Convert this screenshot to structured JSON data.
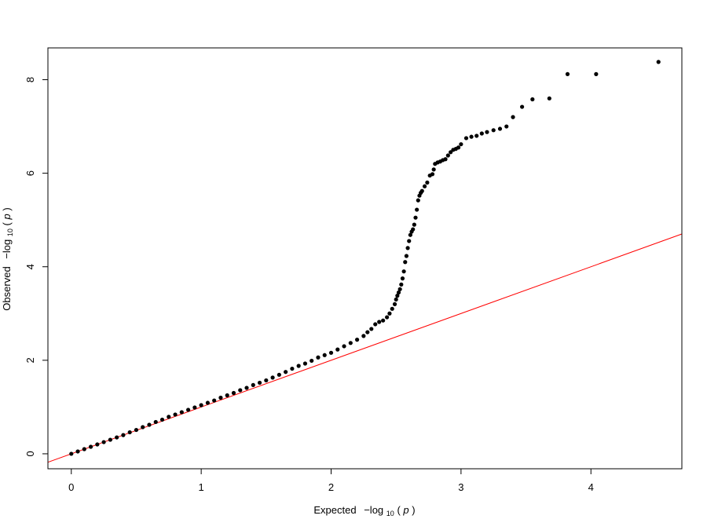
{
  "chart_data": {
    "type": "scatter",
    "title": "",
    "xlabel": {
      "prefix": "Expected",
      "func": "−log",
      "sub": "10",
      "open": "(",
      "var": "p",
      "close": ")"
    },
    "ylabel": {
      "prefix": "Observed",
      "func": "−log",
      "sub": "10",
      "open": "(",
      "var": "p",
      "close": ")"
    },
    "xlim": [
      -0.18,
      4.7
    ],
    "ylim": [
      -0.32,
      8.68
    ],
    "xticks": [
      "0",
      "1",
      "2",
      "3",
      "4"
    ],
    "yticks": [
      "0",
      "2",
      "4",
      "6",
      "8"
    ],
    "grid": false,
    "point_color": "#000000",
    "reference_line": {
      "intercept": 0,
      "slope": 1,
      "color": "#ff0000"
    },
    "series": [
      {
        "x": [
          0.0,
          0.05,
          0.1,
          0.15,
          0.2,
          0.25,
          0.3,
          0.35,
          0.4,
          0.45,
          0.5,
          0.55,
          0.6,
          0.65,
          0.7,
          0.75,
          0.8,
          0.85,
          0.9,
          0.95,
          1.0,
          1.05,
          1.1,
          1.15,
          1.2,
          1.25,
          1.3,
          1.35,
          1.4,
          1.45,
          1.5,
          1.55,
          1.6,
          1.65,
          1.7,
          1.75,
          1.8,
          1.85,
          1.9,
          1.95,
          2.0,
          2.05,
          2.1,
          2.15,
          2.2,
          2.25,
          2.28,
          2.31,
          2.34,
          2.37,
          2.4,
          2.43,
          2.45,
          2.47,
          2.49,
          2.5,
          2.51,
          2.52,
          2.53,
          2.54,
          2.55,
          2.56,
          2.57,
          2.58,
          2.59,
          2.6,
          2.61,
          2.62,
          2.63,
          2.64,
          2.65,
          2.66,
          2.67,
          2.68,
          2.69,
          2.7,
          2.72,
          2.74,
          2.76,
          2.78,
          2.79,
          2.8,
          2.82,
          2.84,
          2.86,
          2.88,
          2.9,
          2.92,
          2.94,
          2.96,
          2.98,
          3.0,
          3.04,
          3.08,
          3.12,
          3.16,
          3.2,
          3.25,
          3.3,
          3.35,
          3.4,
          3.47,
          3.55,
          3.68,
          3.82,
          4.04,
          4.52
        ],
        "y": [
          0.0,
          0.05,
          0.1,
          0.15,
          0.2,
          0.25,
          0.3,
          0.35,
          0.4,
          0.46,
          0.51,
          0.57,
          0.62,
          0.68,
          0.73,
          0.79,
          0.84,
          0.89,
          0.94,
          0.99,
          1.04,
          1.09,
          1.14,
          1.2,
          1.25,
          1.3,
          1.36,
          1.41,
          1.47,
          1.52,
          1.57,
          1.63,
          1.69,
          1.75,
          1.82,
          1.88,
          1.93,
          1.99,
          2.06,
          2.11,
          2.16,
          2.23,
          2.3,
          2.37,
          2.44,
          2.52,
          2.6,
          2.67,
          2.77,
          2.82,
          2.85,
          2.92,
          3.0,
          3.1,
          3.2,
          3.3,
          3.38,
          3.45,
          3.52,
          3.62,
          3.75,
          3.9,
          4.1,
          4.23,
          4.4,
          4.55,
          4.68,
          4.75,
          4.8,
          4.9,
          5.05,
          5.22,
          5.42,
          5.52,
          5.58,
          5.62,
          5.72,
          5.8,
          5.95,
          5.98,
          6.08,
          6.2,
          6.23,
          6.25,
          6.28,
          6.3,
          6.38,
          6.45,
          6.5,
          6.52,
          6.55,
          6.62,
          6.75,
          6.78,
          6.8,
          6.85,
          6.88,
          6.92,
          6.95,
          7.0,
          7.2,
          7.42,
          7.58,
          7.6,
          8.12,
          8.12,
          8.38
        ]
      }
    ]
  }
}
